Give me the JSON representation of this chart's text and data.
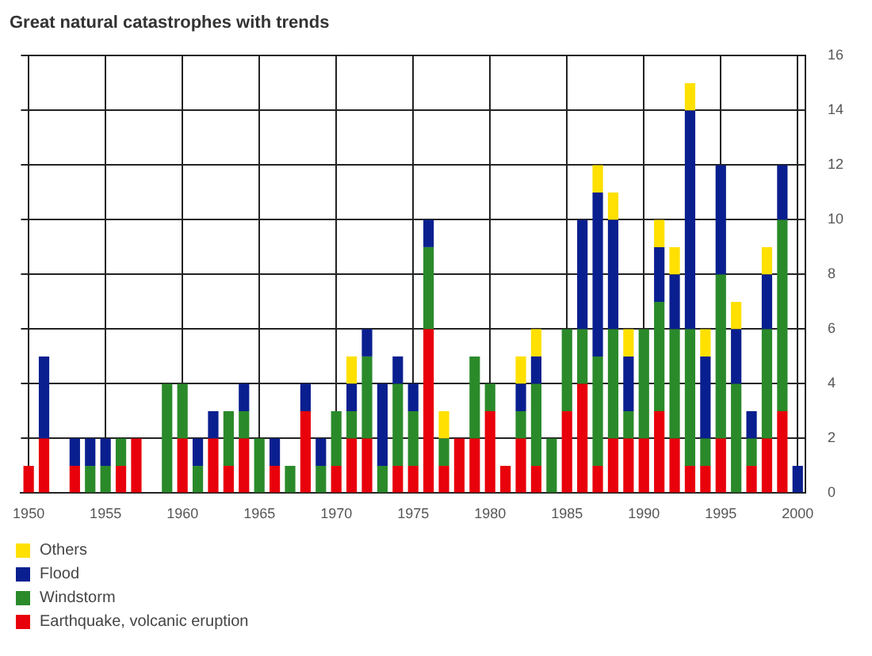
{
  "chart_data": {
    "type": "bar",
    "title": "Great natural catastrophes with trends",
    "stacked": true,
    "categories": [
      "1950",
      null,
      null,
      null,
      null,
      "1955",
      null,
      null,
      null,
      null,
      "1960",
      null,
      null,
      null,
      null,
      "1965",
      null,
      null,
      null,
      null,
      "1970",
      null,
      null,
      null,
      null,
      "1975",
      null,
      null,
      null,
      null,
      "1980",
      null,
      null,
      null,
      null,
      "1985",
      null,
      null,
      null,
      null,
      "1990",
      null,
      null,
      null,
      null,
      "1995",
      null,
      null,
      null,
      null,
      "2000"
    ],
    "series": [
      {
        "name": "Earthquake, volcanic eruption",
        "color": "#e8000b",
        "values": [
          1,
          2,
          0,
          1,
          0,
          0,
          1,
          2,
          0,
          0,
          2,
          0,
          2,
          1,
          2,
          0,
          1,
          0,
          3,
          0,
          1,
          2,
          2,
          0,
          1,
          1,
          6,
          1,
          2,
          2,
          3,
          1,
          2,
          1,
          0,
          3,
          4,
          1,
          2,
          2,
          2,
          3,
          2,
          1,
          1,
          2,
          0,
          1,
          2,
          3,
          0
        ]
      },
      {
        "name": "Windstorm",
        "color": "#2a8a2a",
        "values": [
          0,
          0,
          0,
          0,
          1,
          1,
          1,
          0,
          0,
          4,
          2,
          1,
          0,
          2,
          1,
          2,
          0,
          1,
          0,
          1,
          2,
          1,
          3,
          1,
          3,
          2,
          3,
          1,
          0,
          3,
          1,
          0,
          1,
          3,
          2,
          3,
          2,
          4,
          4,
          1,
          4,
          4,
          4,
          5,
          1,
          6,
          4,
          1,
          4,
          7,
          0
        ]
      },
      {
        "name": "Flood",
        "color": "#0a1f8f",
        "values": [
          0,
          3,
          0,
          1,
          1,
          1,
          0,
          0,
          0,
          0,
          0,
          1,
          1,
          0,
          1,
          0,
          1,
          0,
          1,
          1,
          0,
          1,
          1,
          3,
          1,
          1,
          1,
          0,
          0,
          0,
          0,
          0,
          1,
          1,
          0,
          0,
          4,
          6,
          4,
          2,
          0,
          2,
          2,
          8,
          3,
          4,
          2,
          1,
          2,
          2,
          1
        ]
      },
      {
        "name": "Others",
        "color": "#ffe000",
        "values": [
          0,
          0,
          0,
          0,
          0,
          0,
          0,
          0,
          0,
          0,
          0,
          0,
          0,
          0,
          0,
          0,
          0,
          0,
          0,
          0,
          0,
          1,
          0,
          0,
          0,
          0,
          0,
          1,
          0,
          0,
          0,
          0,
          1,
          1,
          0,
          0,
          0,
          1,
          1,
          1,
          0,
          1,
          1,
          1,
          1,
          0,
          1,
          0,
          1,
          0,
          0
        ]
      }
    ],
    "ylim": [
      0,
      16
    ],
    "yticks": [
      0,
      2,
      4,
      6,
      8,
      10,
      12,
      14,
      16
    ],
    "grid": true,
    "legend": "bottom left"
  }
}
